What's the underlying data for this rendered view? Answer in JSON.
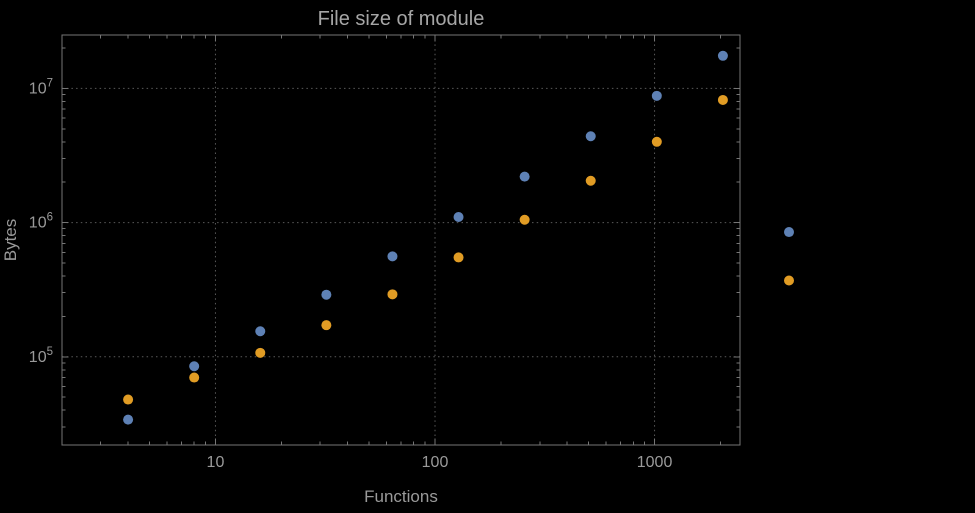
{
  "chart_data": {
    "type": "scatter",
    "title": "File size of module",
    "xlabel": "Functions",
    "ylabel": "Bytes",
    "x_scale": "log",
    "y_scale": "log",
    "xlim": [
      2,
      2450
    ],
    "ylim": [
      22000,
      25000000
    ],
    "grid": true,
    "legend_position": "none",
    "x_ticks": [
      {
        "value": 10,
        "label": "10"
      },
      {
        "value": 100,
        "label": "100"
      },
      {
        "value": 1000,
        "label": "1000"
      }
    ],
    "y_ticks": [
      {
        "value": 100000,
        "base": "10",
        "exponent": "5"
      },
      {
        "value": 1000000,
        "base": "10",
        "exponent": "6"
      },
      {
        "value": 10000000,
        "base": "10",
        "exponent": "7"
      }
    ],
    "series": [
      {
        "name": "blue-series",
        "color": "#5e81b5",
        "x": [
          4,
          8,
          16,
          32,
          64,
          128,
          256,
          512,
          1024,
          2048,
          4096
        ],
        "y": [
          34000,
          85000,
          155000,
          290000,
          560000,
          1100000,
          2200000,
          4400000,
          8800000,
          17500000,
          850000
        ]
      },
      {
        "name": "orange-series",
        "color": "#e19c24",
        "x": [
          4,
          8,
          16,
          32,
          64,
          128,
          256,
          512,
          1024,
          2048,
          4096
        ],
        "y": [
          48000,
          70000,
          107000,
          172000,
          292000,
          550000,
          1050000,
          2050000,
          4000000,
          8200000,
          370000
        ]
      }
    ]
  },
  "colors": {
    "background": "#000000",
    "frame": "#767676",
    "grid": "#5a5a5a",
    "text": "#9a9a9a",
    "title_text": "#a6a6a6"
  }
}
